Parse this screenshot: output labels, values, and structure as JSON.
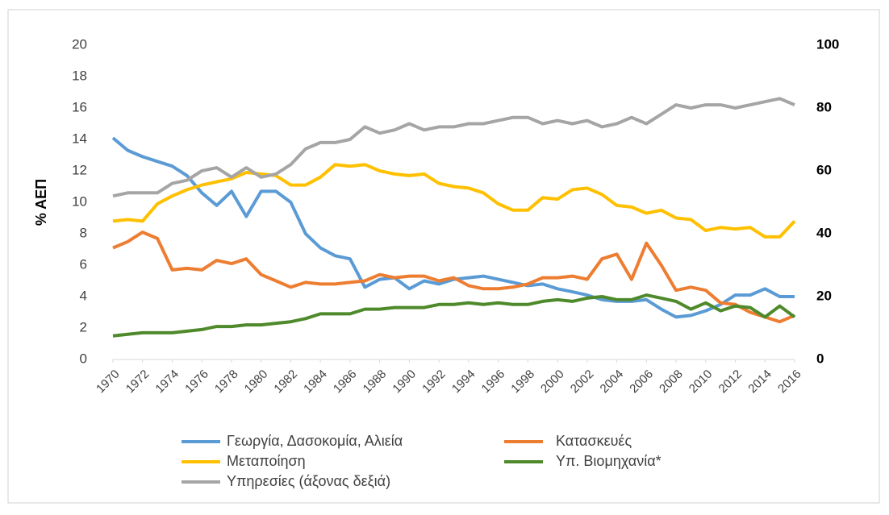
{
  "chart_data": {
    "type": "line",
    "y_label": "% ΑΕΠ",
    "x": [
      1970,
      1971,
      1972,
      1973,
      1974,
      1975,
      1976,
      1977,
      1978,
      1979,
      1980,
      1981,
      1982,
      1983,
      1984,
      1985,
      1986,
      1987,
      1988,
      1989,
      1990,
      1991,
      1992,
      1993,
      1994,
      1995,
      1996,
      1997,
      1998,
      1999,
      2000,
      2001,
      2002,
      2003,
      2004,
      2005,
      2006,
      2007,
      2008,
      2009,
      2010,
      2011,
      2012,
      2013,
      2014,
      2015,
      2016
    ],
    "xlim": [
      1970,
      2016
    ],
    "xticks": [
      1970,
      1972,
      1974,
      1976,
      1978,
      1980,
      1982,
      1984,
      1986,
      1988,
      1990,
      1992,
      1994,
      1996,
      1998,
      2000,
      2002,
      2004,
      2006,
      2008,
      2010,
      2012,
      2014,
      2016
    ],
    "ylim": [
      0,
      20
    ],
    "yticks": [
      0,
      2,
      4,
      6,
      8,
      10,
      12,
      14,
      16,
      18,
      20
    ],
    "y2lim": [
      0,
      100
    ],
    "y2ticks": [
      0,
      20,
      40,
      60,
      80,
      100
    ],
    "grid": false,
    "series": [
      {
        "name": "Γεωργία, Δασοκομία, Αλιεία",
        "color": "#5b9bd5",
        "values": [
          14.1,
          13.3,
          12.9,
          12.6,
          12.3,
          11.7,
          10.6,
          9.8,
          10.7,
          9.1,
          10.7,
          10.7,
          10.0,
          8.0,
          7.1,
          6.6,
          6.4,
          4.6,
          5.1,
          5.2,
          4.5,
          5.0,
          4.8,
          5.1,
          5.2,
          5.3,
          5.1,
          4.9,
          4.7,
          4.8,
          4.5,
          4.3,
          4.1,
          3.8,
          3.7,
          3.7,
          3.8,
          3.2,
          2.7,
          2.8,
          3.1,
          3.5,
          4.1,
          4.1,
          4.5,
          4.0,
          4.0
        ]
      },
      {
        "name": "Κατασκευές",
        "color": "#ed7d31",
        "values": [
          7.1,
          7.5,
          8.1,
          7.7,
          5.7,
          5.8,
          5.7,
          6.3,
          6.1,
          6.4,
          5.4,
          5.0,
          4.6,
          4.9,
          4.8,
          4.8,
          4.9,
          5.0,
          5.4,
          5.2,
          5.3,
          5.3,
          5.0,
          5.2,
          4.7,
          4.5,
          4.5,
          4.6,
          4.8,
          5.2,
          5.2,
          5.3,
          5.1,
          6.4,
          6.7,
          5.1,
          7.4,
          6.0,
          4.4,
          4.6,
          4.4,
          3.6,
          3.5,
          3.0,
          2.7,
          2.4,
          2.8
        ]
      },
      {
        "name": "Μεταποίηση",
        "color": "#ffc000",
        "values": [
          8.8,
          8.9,
          8.8,
          9.9,
          10.4,
          10.8,
          11.1,
          11.3,
          11.5,
          11.9,
          11.8,
          11.7,
          11.1,
          11.1,
          11.6,
          12.4,
          12.3,
          12.4,
          12.0,
          11.8,
          11.7,
          11.8,
          11.2,
          11.0,
          10.9,
          10.6,
          9.9,
          9.5,
          9.5,
          10.3,
          10.2,
          10.8,
          10.9,
          10.5,
          9.8,
          9.7,
          9.3,
          9.5,
          9.0,
          8.9,
          8.2,
          8.4,
          8.3,
          8.4,
          7.8,
          7.8,
          8.8
        ]
      },
      {
        "name": "Υπ. Βιομηχανία*",
        "color": "#4e8a2b",
        "values": [
          1.5,
          1.6,
          1.7,
          1.7,
          1.7,
          1.8,
          1.9,
          2.1,
          2.1,
          2.2,
          2.2,
          2.3,
          2.4,
          2.6,
          2.9,
          2.9,
          2.9,
          3.2,
          3.2,
          3.3,
          3.3,
          3.3,
          3.5,
          3.5,
          3.6,
          3.5,
          3.6,
          3.5,
          3.5,
          3.7,
          3.8,
          3.7,
          3.9,
          4.0,
          3.8,
          3.8,
          4.1,
          3.9,
          3.7,
          3.2,
          3.6,
          3.1,
          3.4,
          3.3,
          2.7,
          3.4,
          2.7
        ]
      },
      {
        "name": "Υπηρεσίες (άξονας δεξιά)",
        "color": "#a5a5a5",
        "axis": "y2",
        "values": [
          52,
          53,
          53,
          53,
          56,
          57,
          60,
          61,
          58,
          61,
          58,
          59,
          62,
          67,
          69,
          69,
          70,
          74,
          72,
          73,
          75,
          73,
          74,
          74,
          75,
          75,
          76,
          77,
          77,
          75,
          76,
          75,
          76,
          74,
          75,
          77,
          75,
          78,
          81,
          80,
          81,
          81,
          80,
          81,
          82,
          83,
          81
        ]
      }
    ]
  }
}
